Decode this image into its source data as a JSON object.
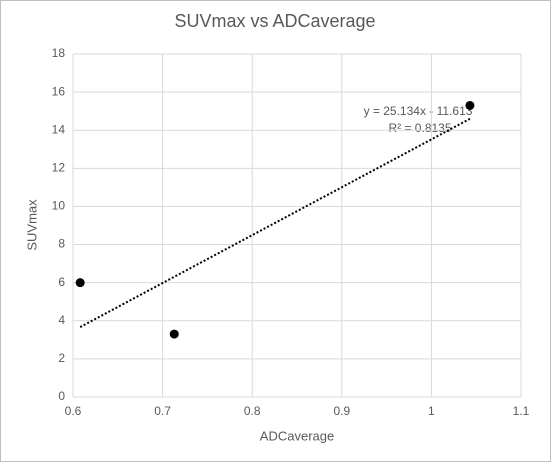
{
  "chart_data": {
    "type": "scatter",
    "title": "SUVmax vs ADCaverage",
    "x_label": "ADCaverage",
    "y_label": "SUVmax",
    "x": [
      0.608,
      0.713,
      1.043
    ],
    "values": [
      6.0,
      3.3,
      15.3
    ],
    "color": "#000000",
    "trendline": {
      "x": [
        0.608,
        1.043
      ],
      "values": [
        3.67,
        14.6
      ],
      "color": "#000000",
      "equation": "y = 25.134x - 11.613",
      "r_squared": "R² = 0.8135"
    },
    "xlim": [
      0.6,
      1.1
    ],
    "xticks": [
      0.6,
      0.7,
      0.8,
      0.9,
      1,
      1.1
    ],
    "ylim": [
      0,
      18
    ],
    "yticks": [
      0,
      2,
      4,
      6,
      8,
      10,
      12,
      14,
      16,
      18
    ],
    "grid": true
  }
}
